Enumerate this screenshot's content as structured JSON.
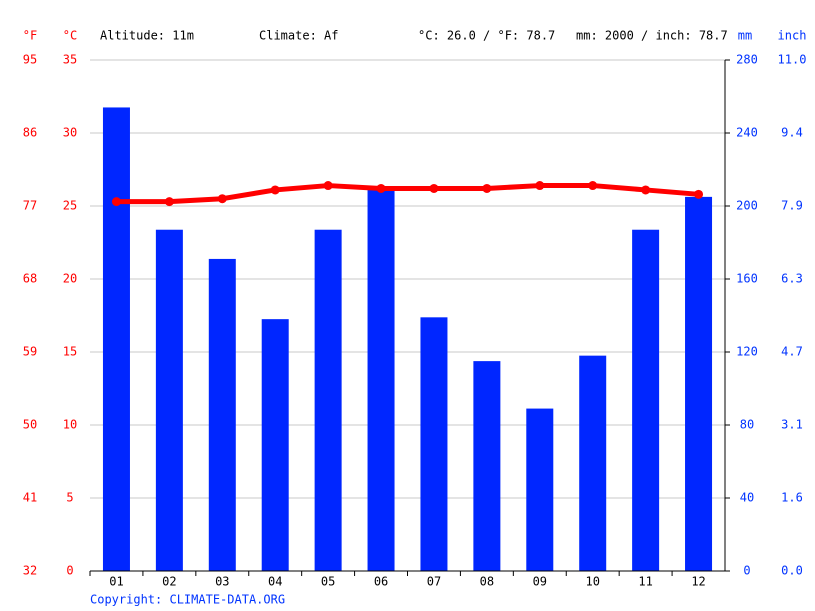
{
  "chart_data": {
    "type": "climate",
    "header": {
      "f_unit": "°F",
      "c_unit": "°C",
      "altitude": "Altitude: 11m",
      "climate": "Climate: Af",
      "temp_summary": "°C: 26.0 / °F: 78.7",
      "precip_summary": "mm: 2000 / inch: 78.7",
      "mm_unit": "mm",
      "inch_unit": "inch"
    },
    "categories": [
      "01",
      "02",
      "03",
      "04",
      "05",
      "06",
      "07",
      "08",
      "09",
      "10",
      "11",
      "12"
    ],
    "series": [
      {
        "type": "bar",
        "axis": "y2",
        "color": "#0026ff",
        "values": [
          254,
          187,
          171,
          138,
          187,
          210,
          139,
          115,
          89,
          118,
          187,
          205
        ]
      },
      {
        "type": "line",
        "color": "#ff0000",
        "values": [
          25.3,
          25.3,
          25.5,
          26.1,
          26.4,
          26.2,
          26.2,
          26.2,
          26.4,
          26.4,
          26.1,
          25.8
        ]
      }
    ],
    "ylim": [
      0,
      35
    ],
    "yticks": [
      0,
      5,
      10,
      15,
      20,
      25,
      30,
      35
    ],
    "fticks": [
      32,
      41,
      50,
      59,
      68,
      77,
      86,
      95
    ],
    "y2lim": [
      0,
      280
    ],
    "y2ticks": [
      0,
      40,
      80,
      120,
      160,
      200,
      240,
      280
    ],
    "inchticks": [
      {
        "value": 0,
        "label": "0.0"
      },
      {
        "value": 1.6,
        "label": "1.6"
      },
      {
        "value": 3.1,
        "label": "3.1"
      },
      {
        "value": 4.7,
        "label": "4.7"
      },
      {
        "value": 6.3,
        "label": "6.3"
      },
      {
        "value": 7.9,
        "label": "7.9"
      },
      {
        "value": 9.4,
        "label": "9.4"
      },
      {
        "value": 11,
        "label": "11.0"
      }
    ],
    "grid": true,
    "copyright": "Copyright: CLIMATE-DATA.ORG"
  }
}
